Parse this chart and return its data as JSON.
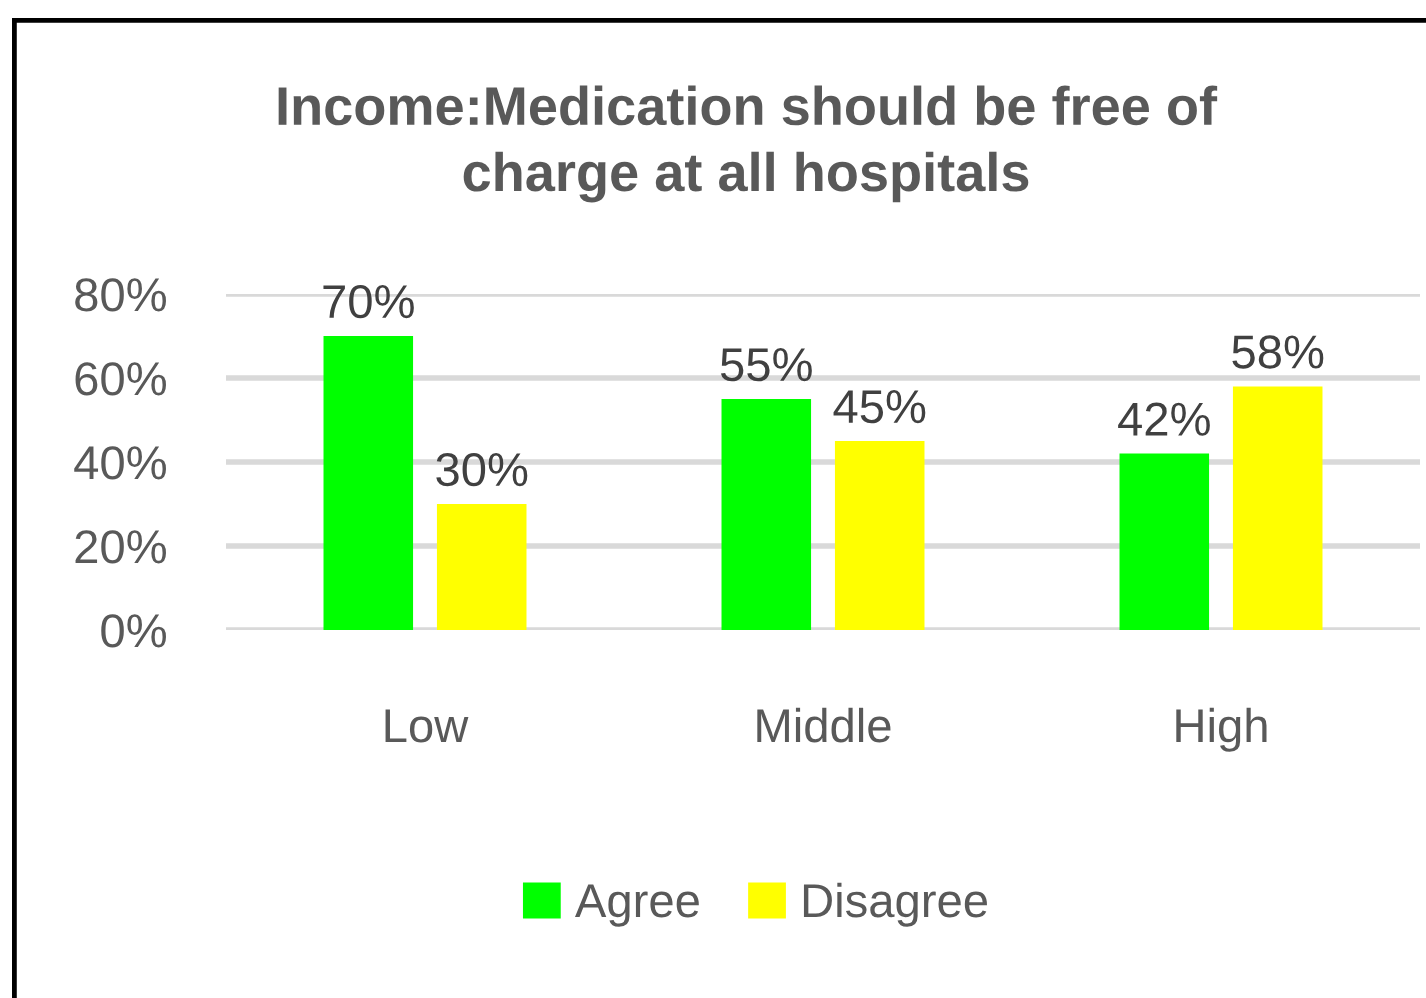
{
  "chart_data": {
    "type": "bar",
    "title": "Income:Medication should be free of\ncharge at all hospitals",
    "categories": [
      "Low",
      "Middle",
      "High"
    ],
    "series": [
      {
        "name": "Agree",
        "color": "#00ff00",
        "values": [
          70,
          55,
          42
        ],
        "value_labels": [
          "70%",
          "55%",
          "42%"
        ]
      },
      {
        "name": "Disagree",
        "color": "#ffff00",
        "values": [
          30,
          45,
          58
        ],
        "value_labels": [
          "30%",
          "45%",
          "58%"
        ]
      }
    ],
    "ylim": [
      0,
      80
    ],
    "yticks": [
      {
        "value": 0,
        "label": "0%"
      },
      {
        "value": 20,
        "label": "20%"
      },
      {
        "value": 40,
        "label": "40%"
      },
      {
        "value": 60,
        "label": "60%"
      },
      {
        "value": 80,
        "label": "80%"
      }
    ],
    "grid": "y",
    "legend": "bottom"
  }
}
